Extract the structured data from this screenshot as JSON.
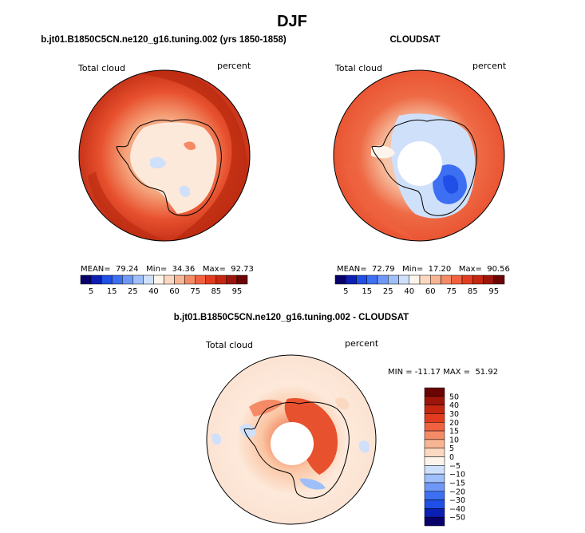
{
  "page_title": "DJF",
  "chart_data": [
    {
      "type": "heatmap",
      "projection": "south-polar-stereographic",
      "title": "b.jt01.B1850C5CN.ne120_g16.tuning.002 (yrs 1850-1858)",
      "left_label": "Total cloud",
      "right_label": "percent",
      "stats_text": "MEAN=  79.24   Min=  34.36   Max=  92.73",
      "stats": {
        "mean": 79.24,
        "min": 34.36,
        "max": 92.73
      },
      "colorbar": {
        "orientation": "horizontal",
        "levels": [
          5,
          10,
          15,
          20,
          25,
          30,
          40,
          50,
          60,
          70,
          75,
          80,
          85,
          90,
          95
        ],
        "tick_labels": [
          "5",
          "15",
          "25",
          "40",
          "60",
          "75",
          "85",
          "95"
        ],
        "colors": [
          "#08006a",
          "#0c1fb4",
          "#1f4fe6",
          "#3c6ff2",
          "#6f97f7",
          "#9ebff9",
          "#cfe0fb",
          "#fdf5ec",
          "#fbd9c0",
          "#f8b593",
          "#f58b66",
          "#f0623f",
          "#e23c1e",
          "#c52711",
          "#9e150b",
          "#6b0404"
        ]
      }
    },
    {
      "type": "heatmap",
      "projection": "south-polar-stereographic",
      "title": "CLOUDSAT",
      "left_label": "Total cloud",
      "right_label": "percent",
      "stats_text": "MEAN=  72.79   Min=  17.20   Max=  90.56",
      "stats": {
        "mean": 72.79,
        "min": 17.2,
        "max": 90.56
      },
      "colorbar": {
        "orientation": "horizontal",
        "levels": [
          5,
          10,
          15,
          20,
          25,
          30,
          40,
          50,
          60,
          70,
          75,
          80,
          85,
          90,
          95
        ],
        "tick_labels": [
          "5",
          "15",
          "25",
          "40",
          "60",
          "75",
          "85",
          "95"
        ],
        "colors": [
          "#08006a",
          "#0c1fb4",
          "#1f4fe6",
          "#3c6ff2",
          "#6f97f7",
          "#9ebff9",
          "#cfe0fb",
          "#fdf5ec",
          "#fbd9c0",
          "#f8b593",
          "#f58b66",
          "#f0623f",
          "#e23c1e",
          "#c52711",
          "#9e150b",
          "#6b0404"
        ]
      }
    },
    {
      "type": "heatmap",
      "projection": "south-polar-stereographic",
      "title": "b.jt01.B1850C5CN.ne120_g16.tuning.002 - CLOUDSAT",
      "left_label": "Total cloud",
      "right_label": "percent",
      "stats_text": "MIN = -11.17 MAX =  51.92",
      "stats": {
        "min": -11.17,
        "max": 51.92
      },
      "colorbar": {
        "orientation": "vertical",
        "levels": [
          -50,
          -40,
          -30,
          -20,
          -15,
          -10,
          -5,
          0,
          5,
          10,
          15,
          20,
          30,
          40,
          50
        ],
        "tick_labels": [
          "50",
          "40",
          "30",
          "20",
          "15",
          "10",
          "5",
          "0",
          "−5",
          "−10",
          "−15",
          "−20",
          "−30",
          "−40",
          "−50"
        ],
        "colors": [
          "#08006a",
          "#0c1fb4",
          "#1f4fe6",
          "#3c6ff2",
          "#6f97f7",
          "#9ebff9",
          "#cfe0fb",
          "#fdf5ec",
          "#fbd9c0",
          "#f8b593",
          "#f58b66",
          "#f0623f",
          "#e23c1e",
          "#c52711",
          "#9e150b",
          "#6b0404"
        ]
      }
    }
  ]
}
